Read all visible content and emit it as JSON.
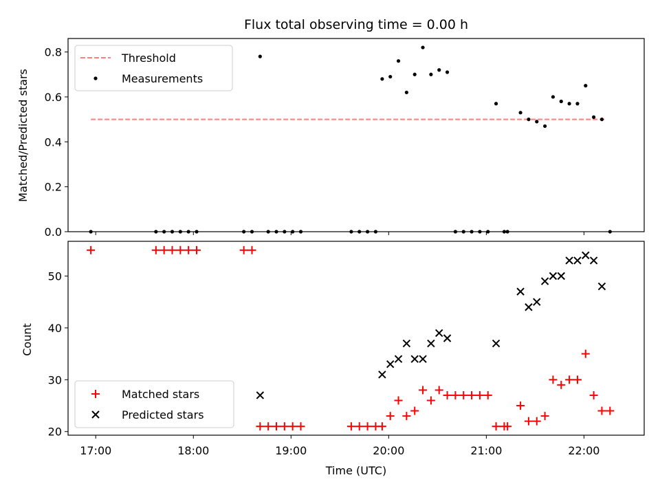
{
  "chart_data": [
    {
      "type": "scatter",
      "title": "Flux total observing time = 0.00 h",
      "xlabel": "",
      "ylabel": "Matched/Predicted stars",
      "xlim": [
        "16:43",
        "22:37"
      ],
      "ylim": [
        0,
        0.86
      ],
      "yticks": [
        "0.0",
        "0.2",
        "0.4",
        "0.6",
        "0.8"
      ],
      "threshold": {
        "name": "Threshold",
        "value": 0.5,
        "x_range": [
          "16:57",
          "22:13"
        ],
        "color": "#ff7f7f",
        "style": "dashed"
      },
      "series": [
        {
          "name": "Measurements",
          "color": "#000000",
          "points": [
            [
              "16:57",
              0.0
            ],
            [
              "17:37",
              0.0
            ],
            [
              "17:42",
              0.0
            ],
            [
              "17:47",
              0.0
            ],
            [
              "17:52",
              0.0
            ],
            [
              "17:57",
              0.0
            ],
            [
              "18:02",
              0.0
            ],
            [
              "18:31",
              0.0
            ],
            [
              "18:36",
              0.0
            ],
            [
              "18:41",
              0.78
            ],
            [
              "18:46",
              0.0
            ],
            [
              "18:51",
              0.0
            ],
            [
              "18:56",
              0.0
            ],
            [
              "19:01",
              0.0
            ],
            [
              "19:06",
              0.0
            ],
            [
              "19:37",
              0.0
            ],
            [
              "19:42",
              0.0
            ],
            [
              "19:47",
              0.0
            ],
            [
              "19:52",
              0.0
            ],
            [
              "19:56",
              0.68
            ],
            [
              "20:01",
              0.69
            ],
            [
              "20:06",
              0.76
            ],
            [
              "20:11",
              0.62
            ],
            [
              "20:16",
              0.7
            ],
            [
              "20:21",
              0.82
            ],
            [
              "20:26",
              0.7
            ],
            [
              "20:31",
              0.72
            ],
            [
              "20:36",
              0.71
            ],
            [
              "20:41",
              0.0
            ],
            [
              "20:46",
              0.0
            ],
            [
              "20:51",
              0.0
            ],
            [
              "20:56",
              0.0
            ],
            [
              "21:01",
              0.0
            ],
            [
              "21:06",
              0.57
            ],
            [
              "21:11",
              0.0
            ],
            [
              "21:13",
              0.0
            ],
            [
              "21:21",
              0.53
            ],
            [
              "21:26",
              0.5
            ],
            [
              "21:31",
              0.49
            ],
            [
              "21:36",
              0.47
            ],
            [
              "21:41",
              0.6
            ],
            [
              "21:46",
              0.58
            ],
            [
              "21:51",
              0.57
            ],
            [
              "21:56",
              0.57
            ],
            [
              "22:01",
              0.65
            ],
            [
              "22:06",
              0.51
            ],
            [
              "22:11",
              0.5
            ],
            [
              "22:16",
              0.0
            ]
          ]
        }
      ],
      "legend": "upper-left"
    },
    {
      "type": "scatter",
      "title": "",
      "xlabel": "Time (UTC)",
      "ylabel": "Count",
      "xlim": [
        "16:43",
        "22:37"
      ],
      "ylim": [
        19.3,
        56.7
      ],
      "xticks": [
        "17:00",
        "18:00",
        "19:00",
        "20:00",
        "21:00",
        "22:00"
      ],
      "yticks": [
        "20",
        "30",
        "40",
        "50"
      ],
      "series": [
        {
          "name": "Matched stars",
          "marker": "plus",
          "color": "#ff0000",
          "points": [
            [
              "16:57",
              55
            ],
            [
              "17:37",
              55
            ],
            [
              "17:42",
              55
            ],
            [
              "17:47",
              55
            ],
            [
              "17:52",
              55
            ],
            [
              "17:57",
              55
            ],
            [
              "18:02",
              55
            ],
            [
              "18:31",
              55
            ],
            [
              "18:36",
              55
            ],
            [
              "18:41",
              21
            ],
            [
              "18:46",
              21
            ],
            [
              "18:51",
              21
            ],
            [
              "18:56",
              21
            ],
            [
              "19:01",
              21
            ],
            [
              "19:06",
              21
            ],
            [
              "19:37",
              21
            ],
            [
              "19:42",
              21
            ],
            [
              "19:47",
              21
            ],
            [
              "19:52",
              21
            ],
            [
              "19:56",
              21
            ],
            [
              "20:01",
              23
            ],
            [
              "20:06",
              26
            ],
            [
              "20:11",
              23
            ],
            [
              "20:16",
              24
            ],
            [
              "20:21",
              28
            ],
            [
              "20:26",
              26
            ],
            [
              "20:31",
              28
            ],
            [
              "20:36",
              27
            ],
            [
              "20:41",
              27
            ],
            [
              "20:46",
              27
            ],
            [
              "20:51",
              27
            ],
            [
              "20:56",
              27
            ],
            [
              "21:01",
              27
            ],
            [
              "21:06",
              21
            ],
            [
              "21:11",
              21
            ],
            [
              "21:13",
              21
            ],
            [
              "21:21",
              25
            ],
            [
              "21:26",
              22
            ],
            [
              "21:31",
              22
            ],
            [
              "21:36",
              23
            ],
            [
              "21:41",
              30
            ],
            [
              "21:46",
              29
            ],
            [
              "21:51",
              30
            ],
            [
              "21:56",
              30
            ],
            [
              "22:01",
              35
            ],
            [
              "22:06",
              27
            ],
            [
              "22:11",
              24
            ],
            [
              "22:16",
              24
            ]
          ]
        },
        {
          "name": "Predicted stars",
          "marker": "x",
          "color": "#000000",
          "points": [
            [
              "18:41",
              27
            ],
            [
              "19:56",
              31
            ],
            [
              "20:01",
              33
            ],
            [
              "20:06",
              34
            ],
            [
              "20:11",
              37
            ],
            [
              "20:16",
              34
            ],
            [
              "20:21",
              34
            ],
            [
              "20:26",
              37
            ],
            [
              "20:31",
              39
            ],
            [
              "20:36",
              38
            ],
            [
              "21:06",
              37
            ],
            [
              "21:21",
              47
            ],
            [
              "21:26",
              44
            ],
            [
              "21:31",
              45
            ],
            [
              "21:36",
              49
            ],
            [
              "21:41",
              50
            ],
            [
              "21:46",
              50
            ],
            [
              "21:51",
              53
            ],
            [
              "21:56",
              53
            ],
            [
              "22:01",
              54
            ],
            [
              "22:06",
              53
            ],
            [
              "22:11",
              48
            ]
          ]
        }
      ],
      "legend": "lower-left"
    }
  ]
}
